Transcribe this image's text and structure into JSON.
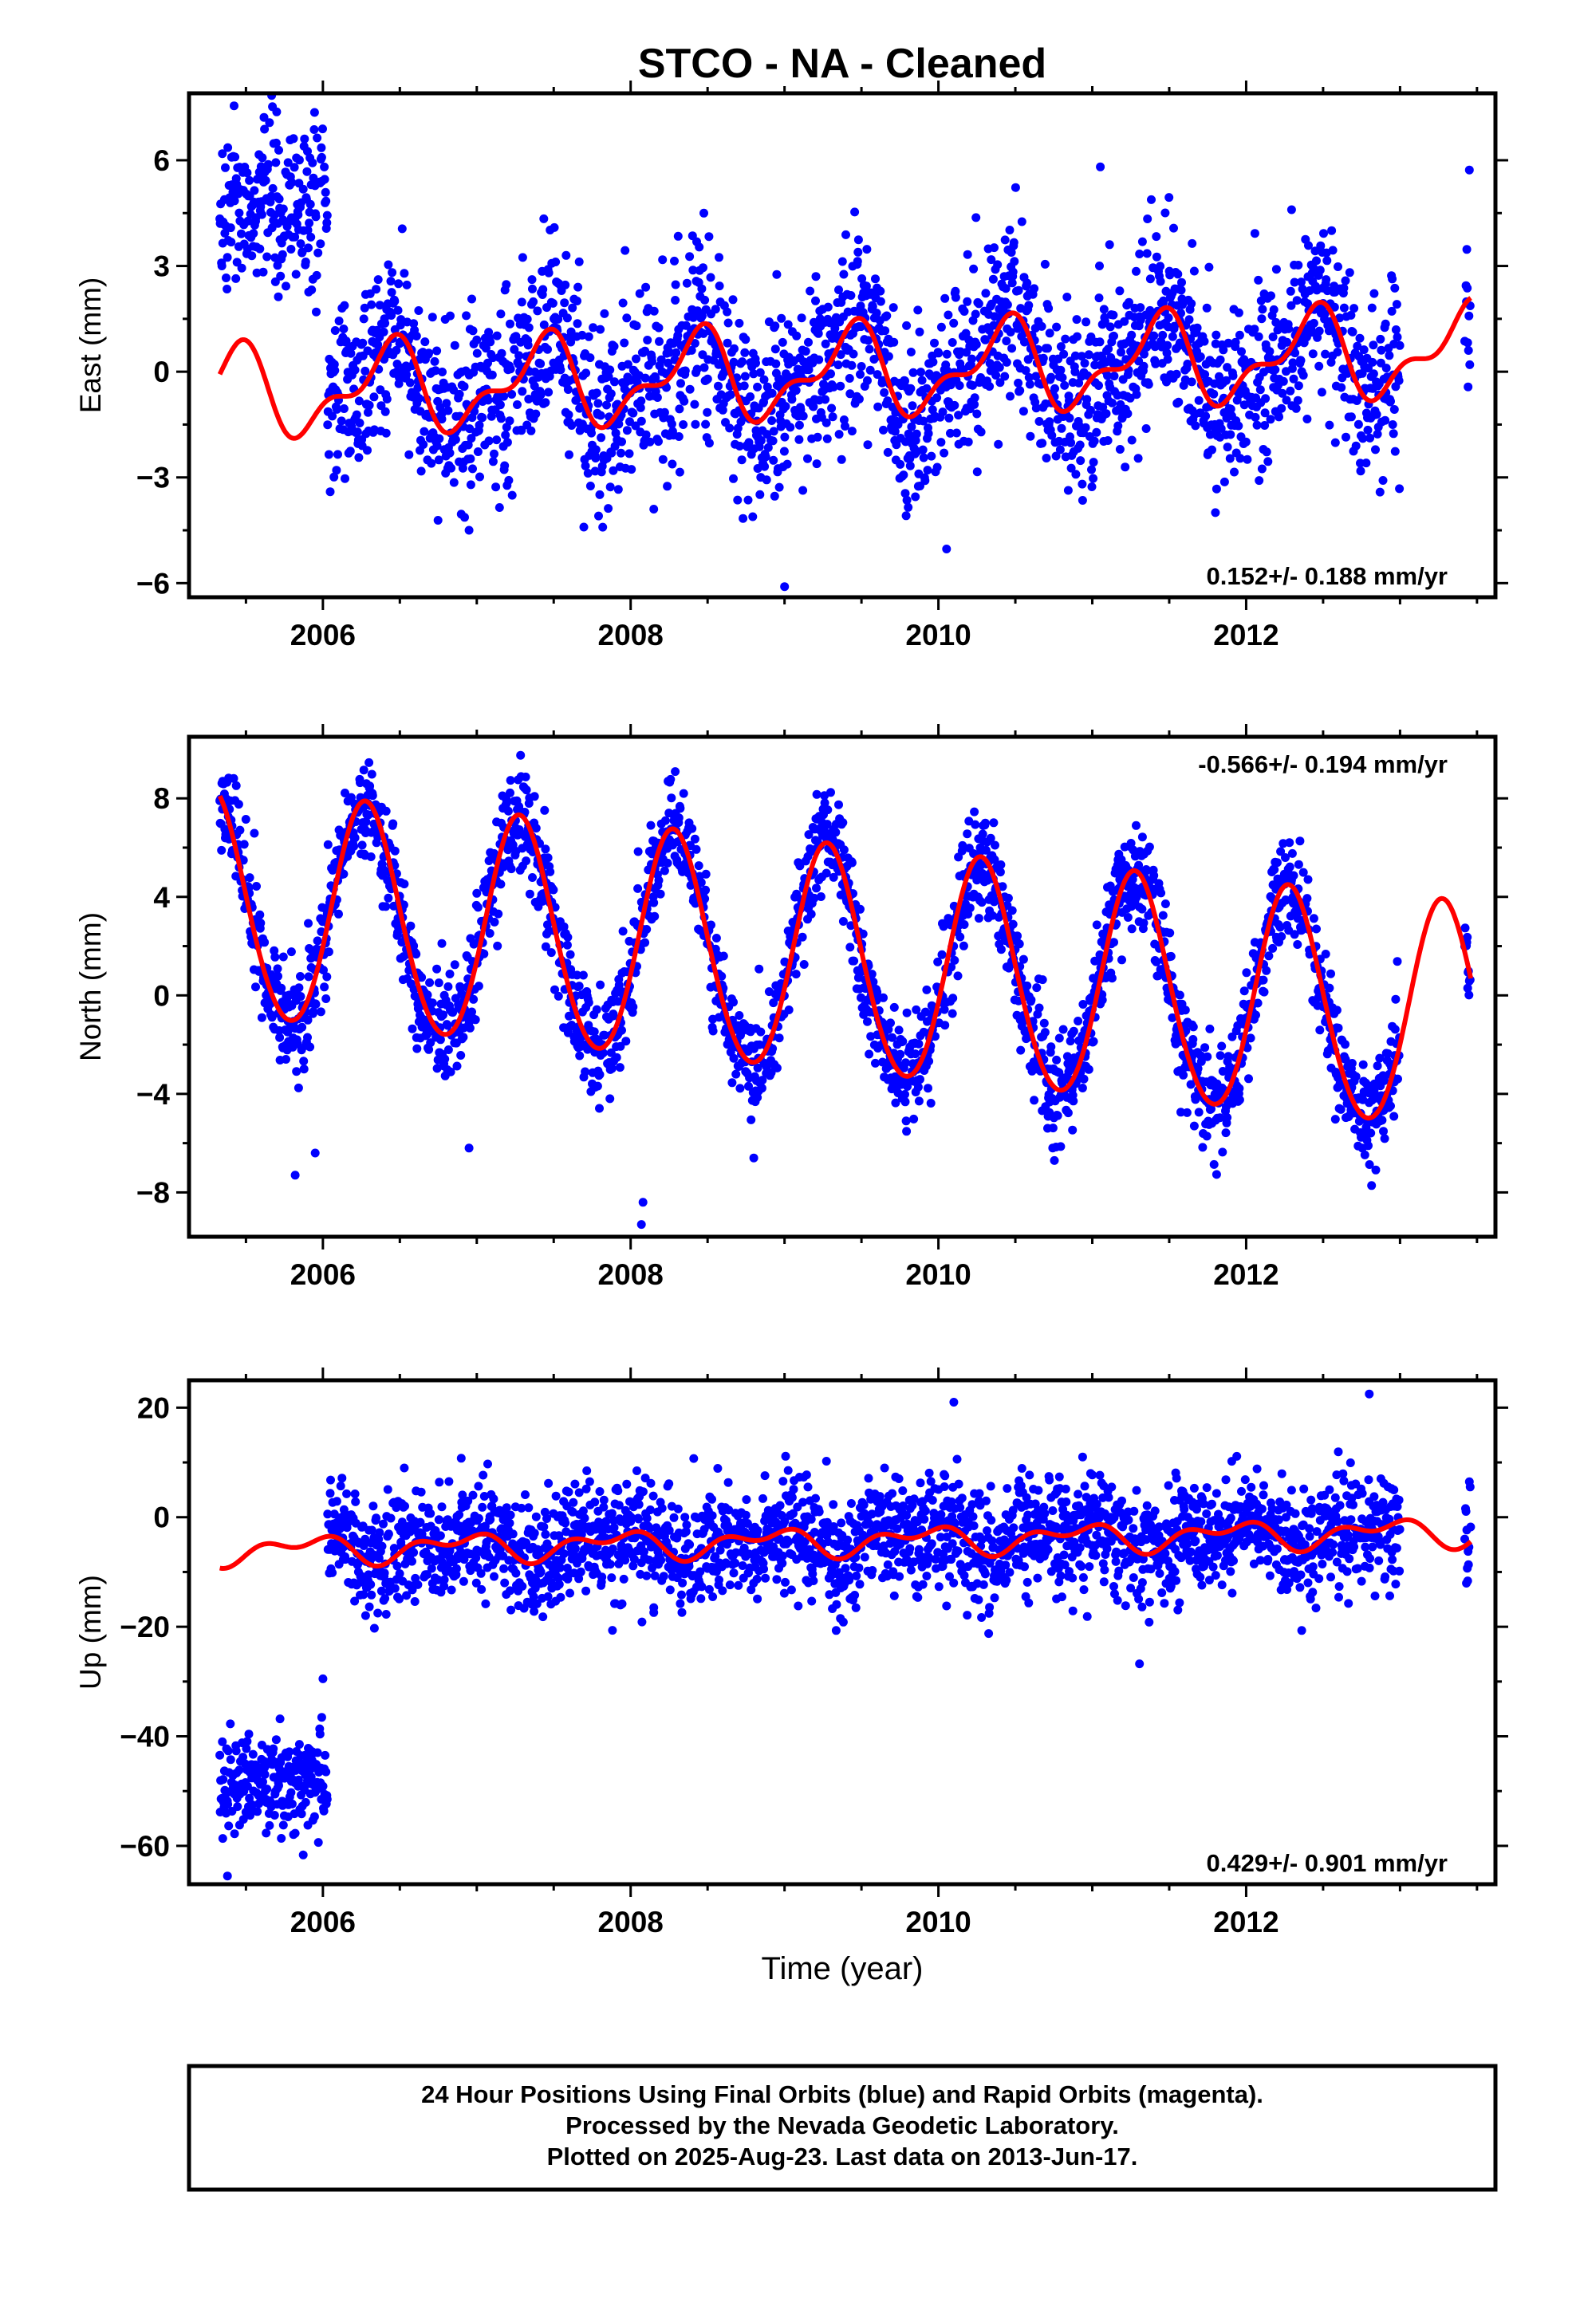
{
  "title": "STCO  - NA - Cleaned",
  "xlabel": "Time (year)",
  "footer": {
    "line1": "24 Hour Positions Using Final Orbits (blue) and Rapid Orbits (magenta).",
    "line2": "Processed by the Nevada Geodetic Laboratory.",
    "line3": "Plotted on 2025-Aug-23. Last data on 2013-Jun-17."
  },
  "colors": {
    "points": "#0000ff",
    "model": "#ff0000",
    "frame": "#000000"
  },
  "chart_data": [
    {
      "type": "scatter",
      "id": "east",
      "ylabel": "East (mm)",
      "rate_label": "0.152+/- 0.188 mm/yr",
      "rate_position": "bottom-right",
      "xlim": [
        2005.13,
        2013.62
      ],
      "ylim": [
        -6.4,
        7.9
      ],
      "xticks": [
        2006,
        2008,
        2010,
        2012
      ],
      "yticks": [
        -6,
        -3,
        0,
        3,
        6
      ],
      "tick_labels": [
        "−6",
        "−3",
        "0",
        "3",
        "6"
      ],
      "observations": {
        "first_epoch": 2005.33,
        "last_epoch": 2013.46,
        "gaps": [
          [
            2013.0,
            2013.42
          ]
        ],
        "early_segment": {
          "end": 2006.03,
          "mean": 4.6,
          "scatter": 1.4
        },
        "scatter_mm": 1.3,
        "outliers": [
          [
            2009.0,
            -6.1
          ],
          [
            2006.95,
            -4.5
          ],
          [
            2008.15,
            -3.9
          ],
          [
            2011.8,
            -4.0
          ]
        ]
      },
      "model": {
        "offset": 0.0,
        "rate": 0.152,
        "ref_epoch": 2009.5,
        "annual_sin": 0.55,
        "annual_cos": -0.95,
        "semiannual_sin": 0.1,
        "semiannual_cos": 0.55,
        "early_segment": {
          "end": 2006.03,
          "offset": 0.0
        }
      }
    },
    {
      "type": "scatter",
      "id": "north",
      "ylabel": "North (mm)",
      "rate_label": "-0.566+/- 0.194 mm/yr",
      "rate_position": "top-right",
      "xlim": [
        2005.13,
        2013.62
      ],
      "ylim": [
        -9.8,
        10.5
      ],
      "xticks": [
        2006,
        2008,
        2010,
        2012
      ],
      "yticks": [
        -8,
        -4,
        0,
        4,
        8
      ],
      "tick_labels": [
        "−8",
        "−4",
        "0",
        "4",
        "8"
      ],
      "observations": {
        "first_epoch": 2005.33,
        "last_epoch": 2013.46,
        "gaps": [
          [
            2013.0,
            2013.42
          ]
        ],
        "scatter_mm": 1.1,
        "outliers": [
          [
            2005.82,
            -7.3
          ],
          [
            2005.95,
            -6.4
          ],
          [
            2008.07,
            -9.3
          ],
          [
            2008.08,
            -8.4
          ],
          [
            2006.95,
            -6.2
          ],
          [
            2008.8,
            -6.6
          ]
        ]
      },
      "model": {
        "offset": 1.2,
        "rate": -0.566,
        "ref_epoch": 2009.5,
        "annual_sin": 4.5,
        "annual_cos": -0.9,
        "semiannual_sin": 0.0,
        "semiannual_cos": -0.3
      }
    },
    {
      "type": "scatter",
      "id": "up",
      "ylabel": "Up (mm)",
      "rate_label": "0.429+/- 0.901 mm/yr",
      "rate_position": "bottom-right",
      "xlim": [
        2005.13,
        2013.62
      ],
      "ylim": [
        -67,
        25
      ],
      "xticks": [
        2006,
        2008,
        2010,
        2012
      ],
      "yticks": [
        -60,
        -40,
        -20,
        0,
        20
      ],
      "tick_labels": [
        "−60",
        "−40",
        "−20",
        "0",
        "20"
      ],
      "observations": {
        "first_epoch": 2005.33,
        "last_epoch": 2013.46,
        "gaps": [
          [
            2013.0,
            2013.42
          ]
        ],
        "early_segment": {
          "end": 2006.03,
          "mean": -48.0,
          "scatter": 4.5
        },
        "scatter_mm": 5.2,
        "outliers": [
          [
            2008.15,
            -16.5
          ],
          [
            2010.1,
            21.0
          ],
          [
            2012.8,
            22.5
          ],
          [
            2006.0,
            -29.5
          ],
          [
            2005.38,
            -65.5
          ]
        ]
      },
      "model": {
        "offset": -4.3,
        "rate": 0.429,
        "ref_epoch": 2009.5,
        "annual_sin": -1.2,
        "annual_cos": 1.5,
        "semiannual_sin": 1.3,
        "semiannual_cos": 0.6
      }
    }
  ]
}
